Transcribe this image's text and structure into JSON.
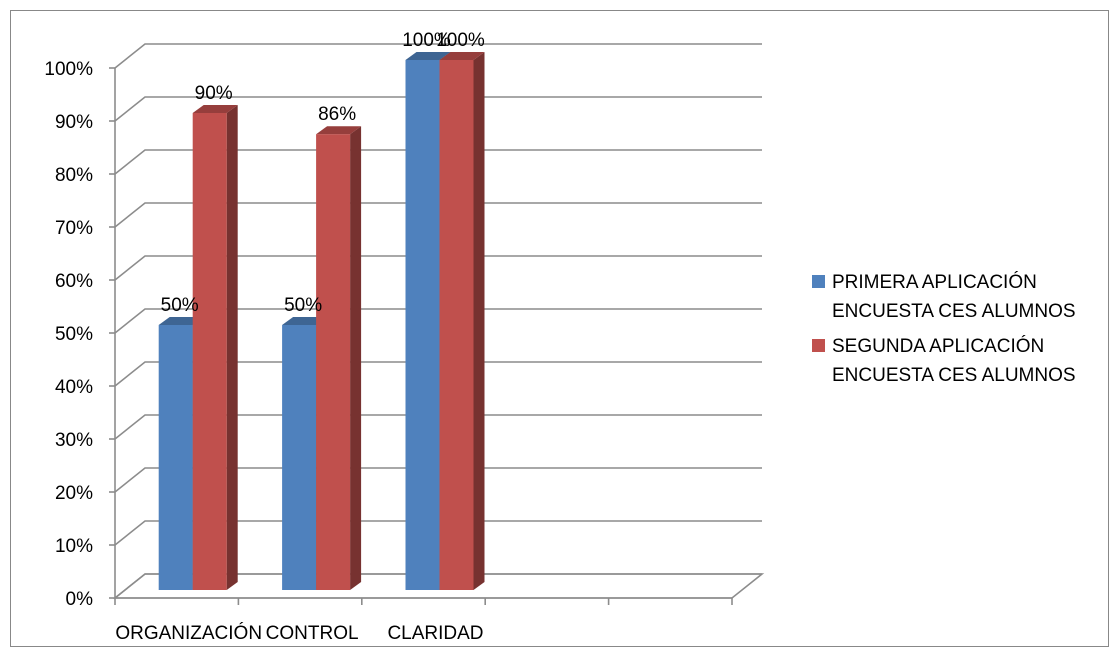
{
  "chart_data": {
    "type": "bar",
    "title": "",
    "xlabel": "",
    "ylabel": "",
    "categories": [
      "ORGANIZACIÓN",
      "CONTROL",
      "CLARIDAD",
      "",
      ""
    ],
    "series": [
      {
        "name": "PRIMERA APLICACIÓN ENCUESTA CES ALUMNOS",
        "values": [
          50,
          50,
          100,
          null,
          null
        ],
        "labels": [
          "50%",
          "50%",
          "100%",
          "",
          ""
        ],
        "color": "#4F81BD"
      },
      {
        "name": "SEGUNDA APLICACIÓN ENCUESTA CES ALUMNOS",
        "values": [
          90,
          86,
          100,
          null,
          null
        ],
        "labels": [
          "90%",
          "86%",
          "100%",
          "",
          ""
        ],
        "color": "#C0504D"
      }
    ],
    "ylim": [
      0,
      100
    ],
    "yticks": [
      "0%",
      "10%",
      "20%",
      "30%",
      "40%",
      "50%",
      "60%",
      "70%",
      "80%",
      "90%",
      "100%"
    ],
    "grid": true,
    "style": "3d-clustered-column",
    "legend": {
      "position": "right",
      "entries": [
        {
          "lines": [
            "PRIMERA APLICACIÓN",
            "ENCUESTA CES ALUMNOS"
          ],
          "color": "#4F81BD"
        },
        {
          "lines": [
            "SEGUNDA APLICACIÓN",
            "ENCUESTA CES ALUMNOS"
          ],
          "color": "#C0504D"
        }
      ]
    }
  }
}
